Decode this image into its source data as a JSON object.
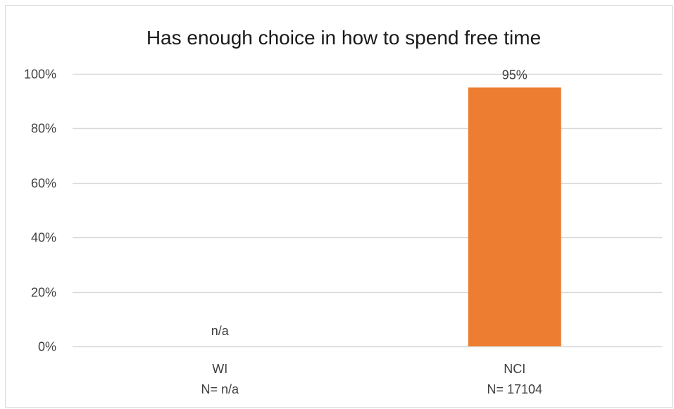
{
  "chart_data": {
    "type": "bar",
    "title": "Has enough choice in how to spend free time",
    "xlabel": "",
    "ylabel": "",
    "categories": [
      "WI",
      "NCI"
    ],
    "category_sublabels": [
      "N= n/a",
      "N= 17104"
    ],
    "values": [
      null,
      0.95
    ],
    "data_labels": [
      "n/a",
      "95%"
    ],
    "ylim": [
      0,
      1
    ],
    "yticks": [
      0,
      0.2,
      0.4,
      0.6,
      0.8,
      1.0
    ],
    "ytick_labels": [
      "0%",
      "20%",
      "40%",
      "60%",
      "80%",
      "100%"
    ],
    "grid": true,
    "legend": "none",
    "bar_color": "#ED7D31",
    "gridline_color": "#d9d9d9"
  }
}
